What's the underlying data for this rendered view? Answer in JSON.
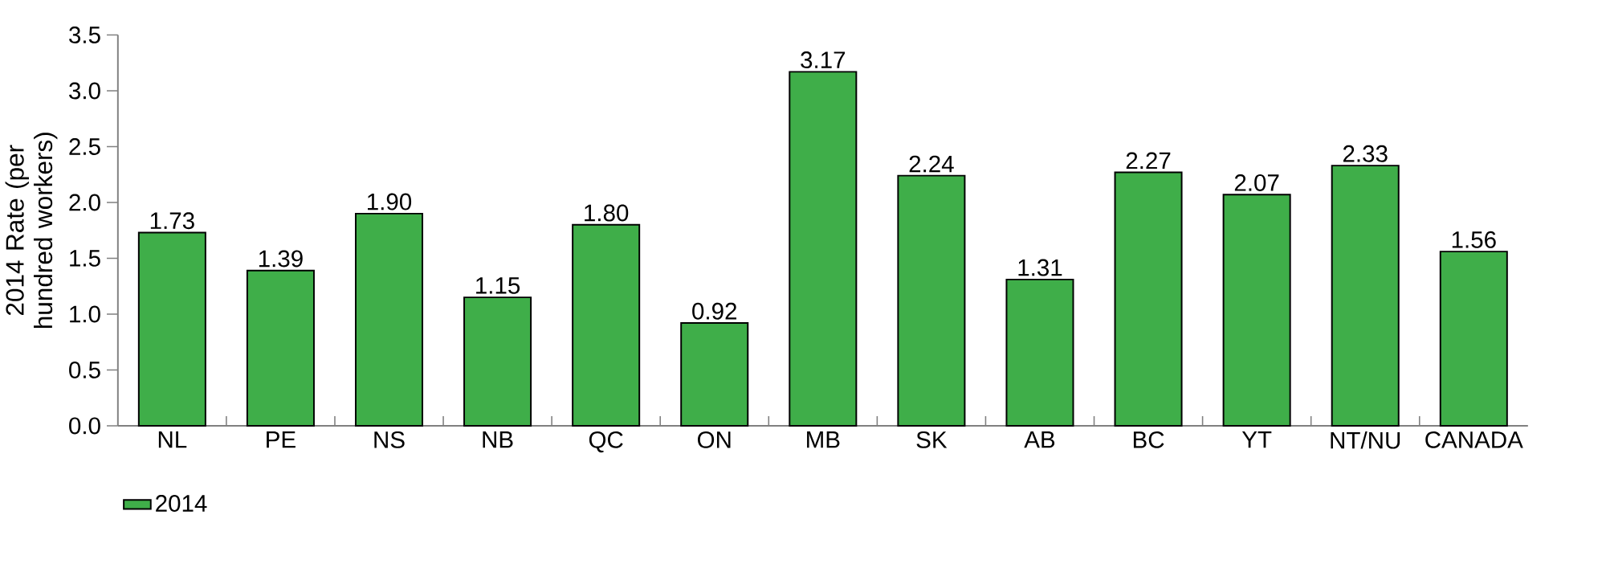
{
  "chart_data": {
    "type": "bar",
    "ylabel": "2014 Rate (per hundred workers)",
    "categories": [
      "NL",
      "PE",
      "NS",
      "NB",
      "QC",
      "ON",
      "MB",
      "SK",
      "AB",
      "BC",
      "YT",
      "NT/NU",
      "CANADA"
    ],
    "series": [
      {
        "name": "2014",
        "color": "#3fae49",
        "values": [
          1.73,
          1.39,
          1.9,
          1.15,
          1.8,
          0.92,
          3.17,
          2.24,
          1.31,
          2.27,
          2.07,
          2.33,
          1.56
        ],
        "value_labels": [
          "1.73",
          "1.39",
          "1.90",
          "1.15",
          "1.80",
          "0.92",
          "3.17",
          "2.24",
          "1.31",
          "2.27",
          "2.07",
          "2.33",
          "1.56"
        ]
      }
    ],
    "ylim": [
      0,
      3.5
    ],
    "yticks": [
      {
        "value": 0,
        "label": "0.0"
      },
      {
        "value": 0.5,
        "label": "0.5"
      },
      {
        "value": 1,
        "label": "1.0"
      },
      {
        "value": 1.5,
        "label": "1.5"
      },
      {
        "value": 2,
        "label": "2.0"
      },
      {
        "value": 2.5,
        "label": "2.5"
      },
      {
        "value": 3,
        "label": "3.0"
      },
      {
        "value": 3.5,
        "label": "3.5"
      }
    ],
    "legend": "bottom left",
    "grid": false
  }
}
